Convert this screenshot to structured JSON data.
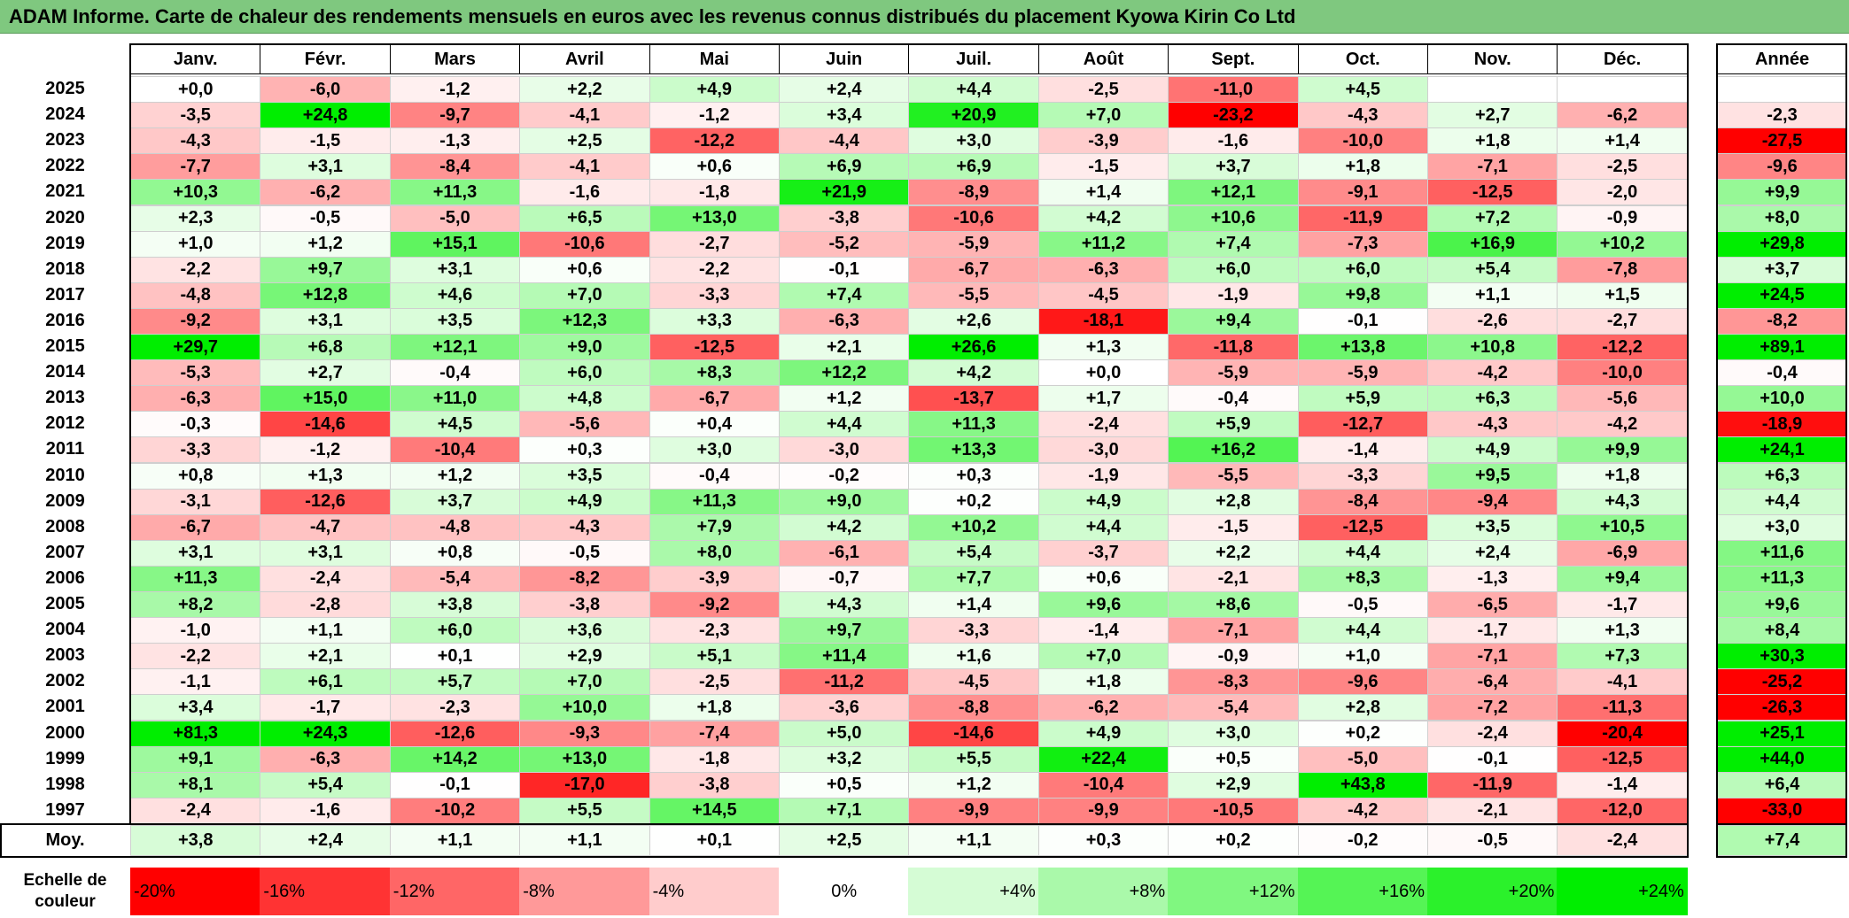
{
  "title": "ADAM Informe. Carte de chaleur des rendements mensuels en euros avec les revenus connus distribués du placement Kyowa Kirin Co Ltd",
  "colors": {
    "title_bg": "#7fc87f",
    "positive_max": "#00ee00",
    "negative_max": "#ff0000",
    "neutral": "#ffffff"
  },
  "chart_data": {
    "type": "heatmap",
    "title": "ADAM Informe. Carte de chaleur des rendements mensuels en euros avec les revenus connus distribués du placement Kyowa Kirin Co Ltd",
    "columns": [
      "Janv.",
      "Févr.",
      "Mars",
      "Avril",
      "Mai",
      "Juin",
      "Juil.",
      "Août",
      "Sept.",
      "Oct.",
      "Nov.",
      "Déc."
    ],
    "annual_header": "Année",
    "rows": [
      {
        "year": "2025",
        "months": [
          "+0,0",
          "-6,0",
          "-1,2",
          "+2,2",
          "+4,9",
          "+2,4",
          "+4,4",
          "-2,5",
          "-11,0",
          "+4,5",
          "",
          ""
        ],
        "annual": ""
      },
      {
        "year": "2024",
        "months": [
          "-3,5",
          "+24,8",
          "-9,7",
          "-4,1",
          "-1,2",
          "+3,4",
          "+20,9",
          "+7,0",
          "-23,2",
          "-4,3",
          "+2,7",
          "-6,2"
        ],
        "annual": "-2,3"
      },
      {
        "year": "2023",
        "months": [
          "-4,3",
          "-1,5",
          "-1,3",
          "+2,5",
          "-12,2",
          "-4,4",
          "+3,0",
          "-3,9",
          "-1,6",
          "-10,0",
          "+1,8",
          "+1,4"
        ],
        "annual": "-27,5"
      },
      {
        "year": "2022",
        "months": [
          "-7,7",
          "+3,1",
          "-8,4",
          "-4,1",
          "+0,6",
          "+6,9",
          "+6,9",
          "-1,5",
          "+3,7",
          "+1,8",
          "-7,1",
          "-2,5"
        ],
        "annual": "-9,6"
      },
      {
        "year": "2021",
        "months": [
          "+10,3",
          "-6,2",
          "+11,3",
          "-1,6",
          "-1,8",
          "+21,9",
          "-8,9",
          "+1,4",
          "+12,1",
          "-9,1",
          "-12,5",
          "-2,0"
        ],
        "annual": "+9,9"
      },
      {
        "year": "2020",
        "months": [
          "+2,3",
          "-0,5",
          "-5,0",
          "+6,5",
          "+13,0",
          "-3,8",
          "-10,6",
          "+4,2",
          "+10,6",
          "-11,9",
          "+7,2",
          "-0,9"
        ],
        "annual": "+8,0"
      },
      {
        "year": "2019",
        "months": [
          "+1,0",
          "+1,2",
          "+15,1",
          "-10,6",
          "-2,7",
          "-5,2",
          "-5,9",
          "+11,2",
          "+7,4",
          "-7,3",
          "+16,9",
          "+10,2"
        ],
        "annual": "+29,8"
      },
      {
        "year": "2018",
        "months": [
          "-2,2",
          "+9,7",
          "+3,1",
          "+0,6",
          "-2,2",
          "-0,1",
          "-6,7",
          "-6,3",
          "+6,0",
          "+6,0",
          "+5,4",
          "-7,8"
        ],
        "annual": "+3,7"
      },
      {
        "year": "2017",
        "months": [
          "-4,8",
          "+12,8",
          "+4,6",
          "+7,0",
          "-3,3",
          "+7,4",
          "-5,5",
          "-4,5",
          "-1,9",
          "+9,8",
          "+1,1",
          "+1,5"
        ],
        "annual": "+24,5"
      },
      {
        "year": "2016",
        "months": [
          "-9,2",
          "+3,1",
          "+3,5",
          "+12,3",
          "+3,3",
          "-6,3",
          "+2,6",
          "-18,1",
          "+9,4",
          "-0,1",
          "-2,6",
          "-2,7"
        ],
        "annual": "-8,2"
      },
      {
        "year": "2015",
        "months": [
          "+29,7",
          "+6,8",
          "+12,1",
          "+9,0",
          "-12,5",
          "+2,1",
          "+26,6",
          "+1,3",
          "-11,8",
          "+13,8",
          "+10,8",
          "-12,2"
        ],
        "annual": "+89,1"
      },
      {
        "year": "2014",
        "months": [
          "-5,3",
          "+2,7",
          "-0,4",
          "+6,0",
          "+8,3",
          "+12,2",
          "+4,2",
          "+0,0",
          "-5,9",
          "-5,9",
          "-4,2",
          "-10,0"
        ],
        "annual": "-0,4"
      },
      {
        "year": "2013",
        "months": [
          "-6,3",
          "+15,0",
          "+11,0",
          "+4,8",
          "-6,7",
          "+1,2",
          "-13,7",
          "+1,7",
          "-0,4",
          "+5,9",
          "+6,3",
          "-5,6"
        ],
        "annual": "+10,0"
      },
      {
        "year": "2012",
        "months": [
          "-0,3",
          "-14,6",
          "+4,5",
          "-5,6",
          "+0,4",
          "+4,4",
          "+11,3",
          "-2,4",
          "+5,9",
          "-12,7",
          "-4,3",
          "-4,2"
        ],
        "annual": "-18,9"
      },
      {
        "year": "2011",
        "months": [
          "-3,3",
          "-1,2",
          "-10,4",
          "+0,3",
          "+3,0",
          "-3,0",
          "+13,3",
          "-3,0",
          "+16,2",
          "-1,4",
          "+4,9",
          "+9,9"
        ],
        "annual": "+24,1"
      },
      {
        "year": "2010",
        "months": [
          "+0,8",
          "+1,3",
          "+1,2",
          "+3,5",
          "-0,4",
          "-0,2",
          "+0,3",
          "-1,9",
          "-5,5",
          "-3,3",
          "+9,5",
          "+1,8"
        ],
        "annual": "+6,3"
      },
      {
        "year": "2009",
        "months": [
          "-3,1",
          "-12,6",
          "+3,7",
          "+4,9",
          "+11,3",
          "+9,0",
          "+0,2",
          "+4,9",
          "+2,8",
          "-8,4",
          "-9,4",
          "+4,3"
        ],
        "annual": "+4,4"
      },
      {
        "year": "2008",
        "months": [
          "-6,7",
          "-4,7",
          "-4,8",
          "-4,3",
          "+7,9",
          "+4,2",
          "+10,2",
          "+4,4",
          "-1,5",
          "-12,5",
          "+3,5",
          "+10,5"
        ],
        "annual": "+3,0"
      },
      {
        "year": "2007",
        "months": [
          "+3,1",
          "+3,1",
          "+0,8",
          "-0,5",
          "+8,0",
          "-6,1",
          "+5,4",
          "-3,7",
          "+2,2",
          "+4,4",
          "+2,4",
          "-6,9"
        ],
        "annual": "+11,6"
      },
      {
        "year": "2006",
        "months": [
          "+11,3",
          "-2,4",
          "-5,4",
          "-8,2",
          "-3,9",
          "-0,7",
          "+7,7",
          "+0,6",
          "-2,1",
          "+8,3",
          "-1,3",
          "+9,4"
        ],
        "annual": "+11,3"
      },
      {
        "year": "2005",
        "months": [
          "+8,2",
          "-2,8",
          "+3,8",
          "-3,8",
          "-9,2",
          "+4,3",
          "+1,4",
          "+9,6",
          "+8,6",
          "-0,5",
          "-6,5",
          "-1,7"
        ],
        "annual": "+9,6"
      },
      {
        "year": "2004",
        "months": [
          "-1,0",
          "+1,1",
          "+6,0",
          "+3,6",
          "-2,3",
          "+9,7",
          "-3,3",
          "-1,4",
          "-7,1",
          "+4,4",
          "-1,7",
          "+1,3"
        ],
        "annual": "+8,4"
      },
      {
        "year": "2003",
        "months": [
          "-2,2",
          "+2,1",
          "+0,1",
          "+2,9",
          "+5,1",
          "+11,4",
          "+1,6",
          "+7,0",
          "-0,9",
          "+1,0",
          "-7,1",
          "+7,3"
        ],
        "annual": "+30,3"
      },
      {
        "year": "2002",
        "months": [
          "-1,1",
          "+6,1",
          "+5,7",
          "+7,0",
          "-2,5",
          "-11,2",
          "-4,5",
          "+1,8",
          "-8,3",
          "-9,6",
          "-6,4",
          "-4,1"
        ],
        "annual": "-25,2"
      },
      {
        "year": "2001",
        "months": [
          "+3,4",
          "-1,7",
          "-2,3",
          "+10,0",
          "+1,8",
          "-3,6",
          "-8,8",
          "-6,2",
          "-5,4",
          "+2,8",
          "-7,2",
          "-11,3"
        ],
        "annual": "-26,3"
      },
      {
        "year": "2000",
        "months": [
          "+81,3",
          "+24,3",
          "-12,6",
          "-9,3",
          "-7,4",
          "+5,0",
          "-14,6",
          "+4,9",
          "+3,0",
          "+0,2",
          "-2,4",
          "-20,4"
        ],
        "annual": "+25,1"
      },
      {
        "year": "1999",
        "months": [
          "+9,1",
          "-6,3",
          "+14,2",
          "+13,0",
          "-1,8",
          "+3,2",
          "+5,5",
          "+22,4",
          "+0,5",
          "-5,0",
          "-0,1",
          "-12,5"
        ],
        "annual": "+44,0"
      },
      {
        "year": "1998",
        "months": [
          "+8,1",
          "+5,4",
          "-0,1",
          "-17,0",
          "-3,8",
          "+0,5",
          "+1,2",
          "-10,4",
          "+2,9",
          "+43,8",
          "-11,9",
          "-1,4"
        ],
        "annual": "+6,4"
      },
      {
        "year": "1997",
        "months": [
          "-2,4",
          "-1,6",
          "-10,2",
          "+5,5",
          "+14,5",
          "+7,1",
          "-9,9",
          "-9,9",
          "-10,5",
          "-4,2",
          "-2,1",
          "-12,0"
        ],
        "annual": "-33,0"
      }
    ],
    "average": {
      "label": "Moy.",
      "months": [
        "+3,8",
        "+2,4",
        "+1,1",
        "+1,1",
        "+0,1",
        "+2,5",
        "+1,1",
        "+0,3",
        "+0,2",
        "-0,2",
        "-0,5",
        "-2,4"
      ],
      "annual": "+7,4"
    },
    "scale": {
      "label": "Echelle de couleur",
      "items": [
        {
          "label": "-20%",
          "value": -20
        },
        {
          "label": "-16%",
          "value": -16
        },
        {
          "label": "-12%",
          "value": -12
        },
        {
          "label": "-8%",
          "value": -8
        },
        {
          "label": "-4%",
          "value": -4
        },
        {
          "label": "0%",
          "value": 0
        },
        {
          "label": "+4%",
          "value": 4
        },
        {
          "label": "+8%",
          "value": 8
        },
        {
          "label": "+12%",
          "value": 12
        },
        {
          "label": "+16%",
          "value": 16
        },
        {
          "label": "+20%",
          "value": 20
        },
        {
          "label": "+24%",
          "value": 24
        }
      ]
    }
  }
}
